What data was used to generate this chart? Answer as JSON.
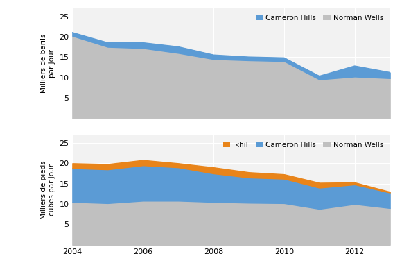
{
  "years": [
    2004,
    2005,
    2006,
    2007,
    2008,
    2009,
    2010,
    2011,
    2012,
    2013
  ],
  "top_cameron_hills": [
    21.0,
    18.5,
    18.5,
    17.5,
    15.5,
    15.0,
    14.8,
    10.3,
    12.8,
    11.2
  ],
  "top_norman_wells": [
    20.2,
    17.5,
    17.2,
    16.0,
    14.5,
    14.2,
    14.0,
    9.5,
    10.2,
    9.8
  ],
  "bot_norman_wells": [
    10.5,
    10.2,
    10.8,
    10.8,
    10.5,
    10.3,
    10.2,
    8.8,
    10.0,
    9.0
  ],
  "bot_cameron_hills": [
    18.8,
    18.5,
    19.5,
    19.0,
    17.5,
    16.5,
    16.2,
    14.0,
    14.8,
    12.8
  ],
  "bot_ikhil": [
    20.0,
    19.8,
    20.8,
    20.0,
    19.0,
    17.8,
    17.3,
    15.2,
    15.3,
    13.0
  ],
  "color_cameron_hills_top": "#5b9bd5",
  "color_norman_wells_top": "#c0c0c0",
  "color_cameron_hills_bot": "#5b9bd5",
  "color_norman_wells_bot": "#c0c0c0",
  "color_ikhil_bot": "#e8841a",
  "top_ylabel": "Milliers de barils\npar jour",
  "bot_ylabel": "Milliers de pieds\ncubes par jour",
  "ylim": [
    0,
    27
  ],
  "yticks": [
    5,
    10,
    15,
    20,
    25
  ],
  "plot_bg_color": "#f2f2f2"
}
